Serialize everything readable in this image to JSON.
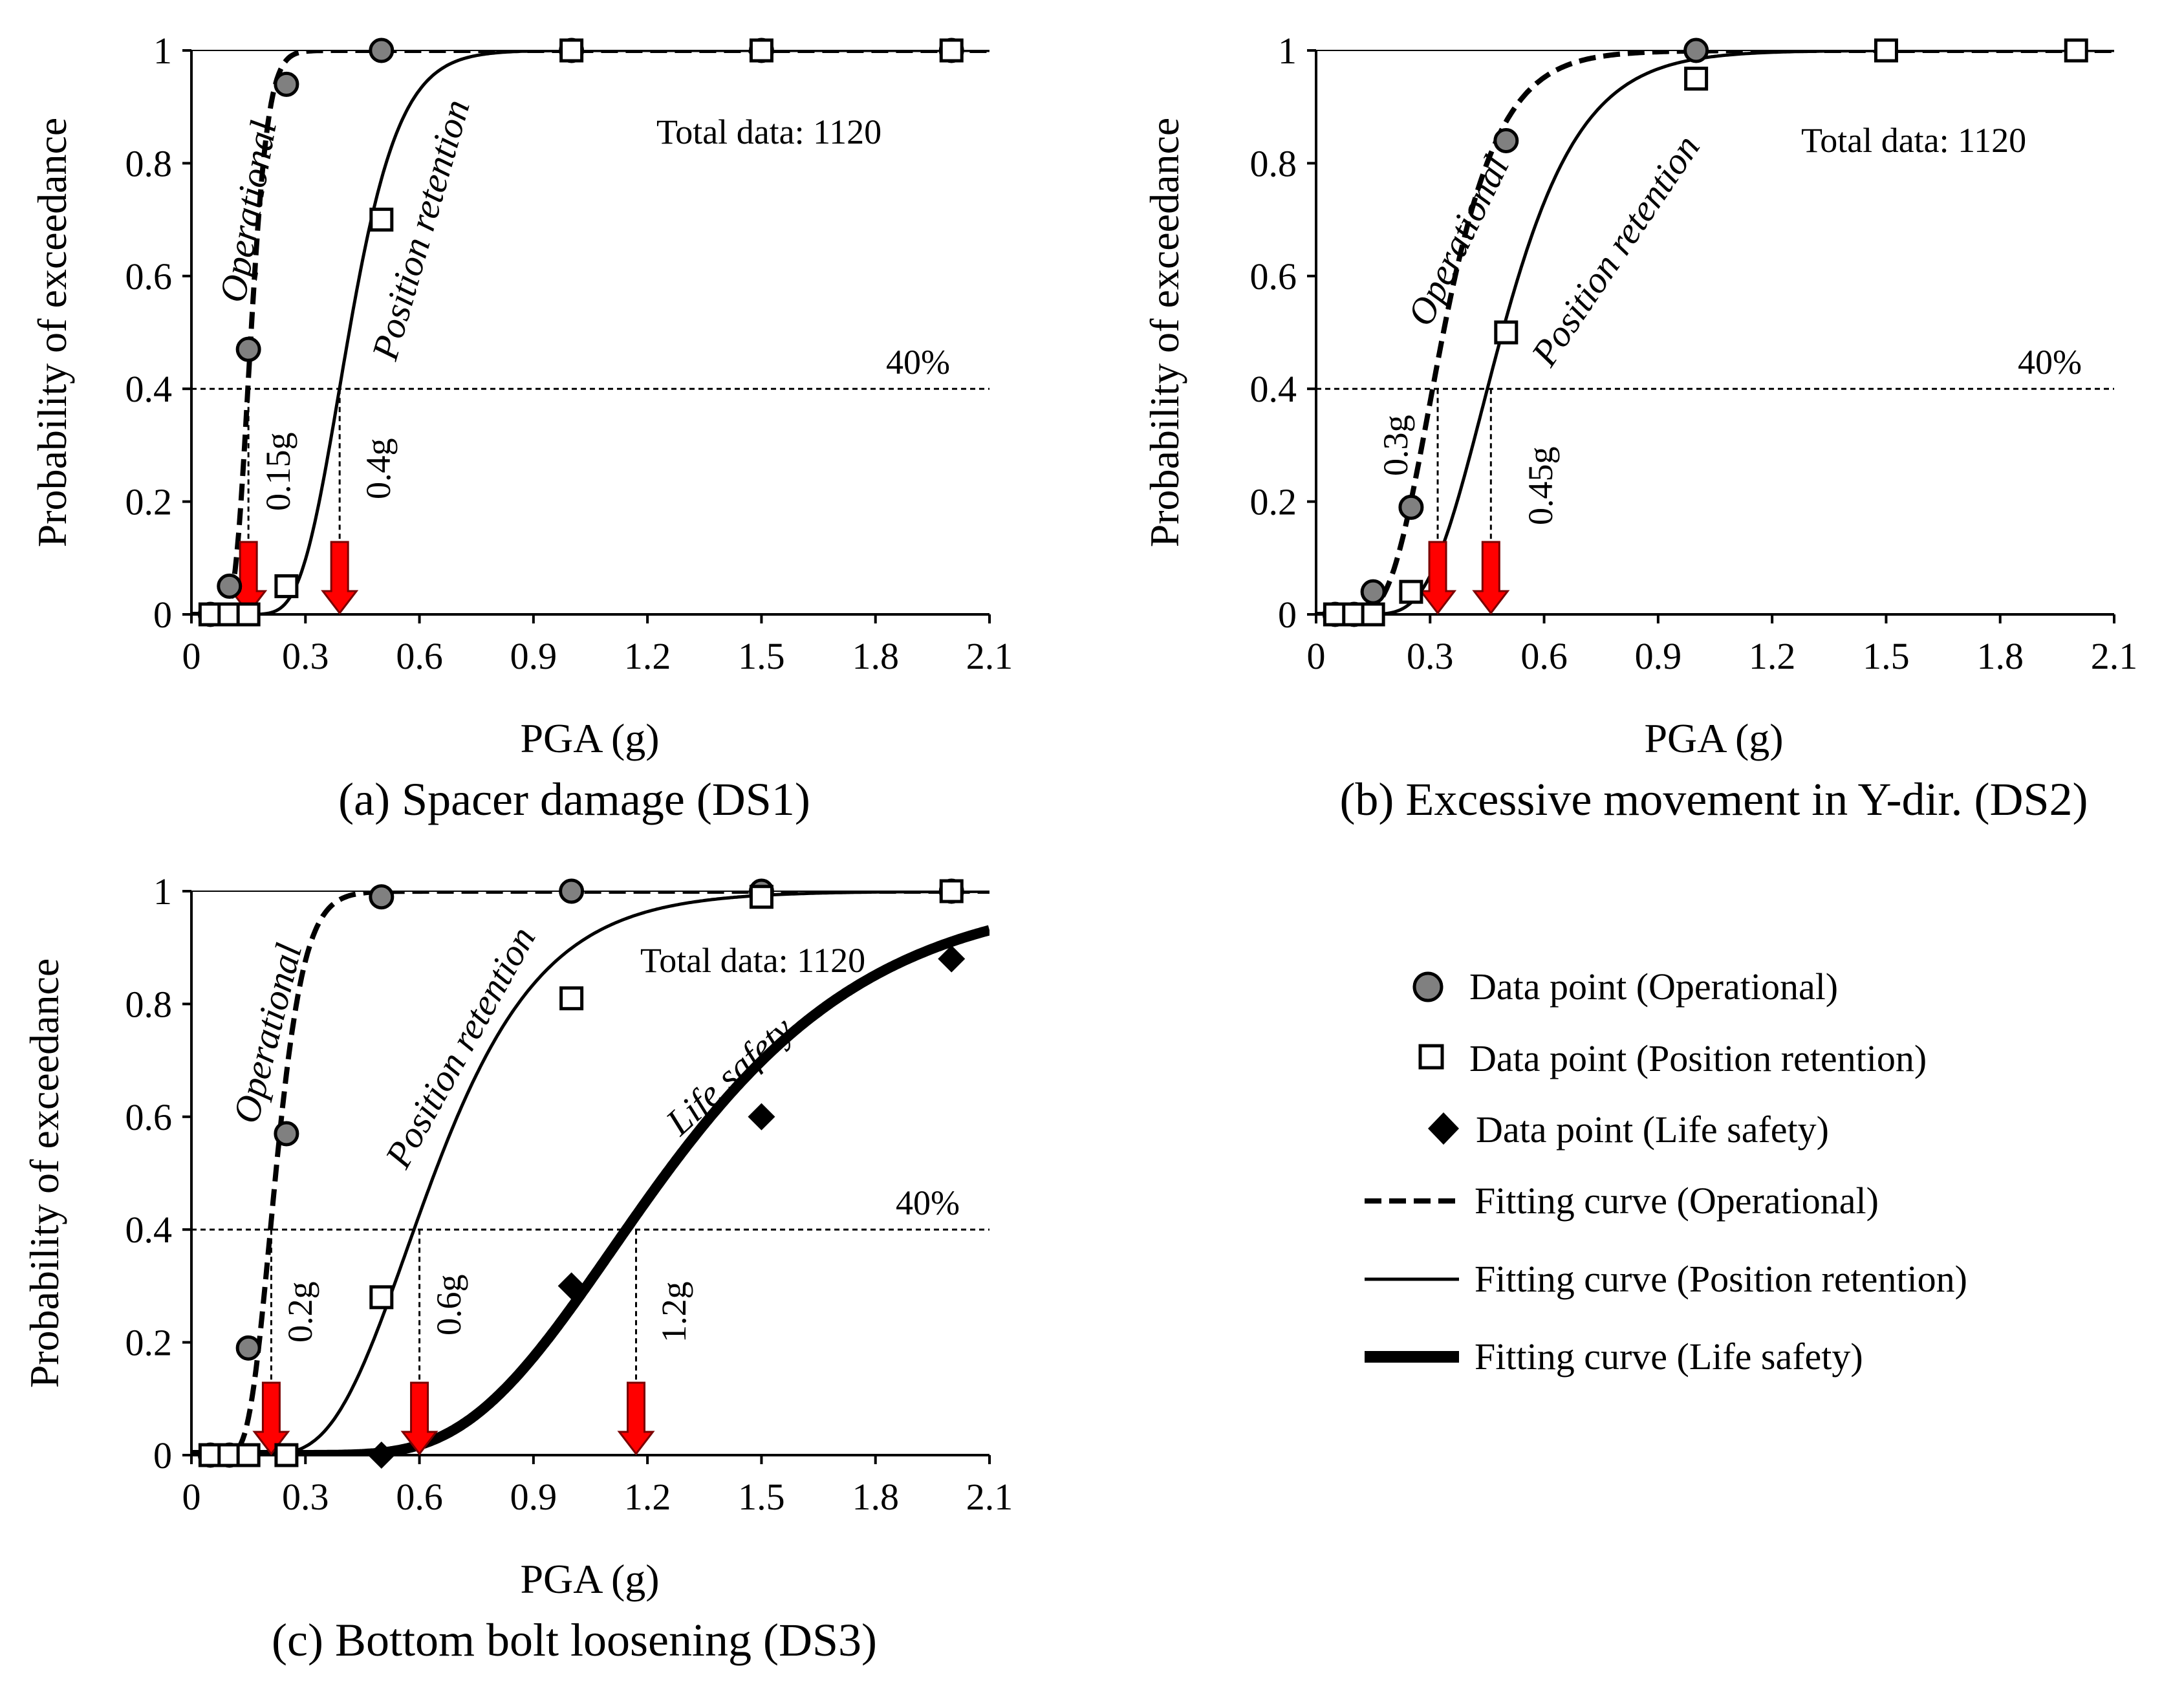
{
  "colors": {
    "arrow": "#ff0000",
    "op_marker": "#808080",
    "axis": "#000000"
  },
  "legend": {
    "items": [
      {
        "key": "op_point",
        "label": "Data point (Operational)"
      },
      {
        "key": "pr_point",
        "label": "Data point (Position retention)"
      },
      {
        "key": "ls_point",
        "label": "Data point (Life safety)"
      },
      {
        "key": "op_curve",
        "label": "Fitting curve (Operational)"
      },
      {
        "key": "pr_curve",
        "label": "Fitting curve (Position retention)"
      },
      {
        "key": "ls_curve",
        "label": "Fitting curve (Life safety)"
      }
    ]
  },
  "chart_data": [
    {
      "type": "scatter",
      "title": "(a) Spacer damage (DS1)",
      "xlabel": "PGA (g)",
      "ylabel": "Probability of exceedance",
      "xlim": [
        0,
        2.1
      ],
      "ylim": [
        0,
        1
      ],
      "xticks": [
        "0",
        "0.3",
        "0.6",
        "0.9",
        "1.2",
        "1.5",
        "1.8",
        "2.1"
      ],
      "yticks": [
        "0",
        "0.2",
        "0.4",
        "0.6",
        "0.8",
        "1"
      ],
      "total_label": "Total data: 1120",
      "threshold": {
        "y": 0.4,
        "label": "40%"
      },
      "series": [
        {
          "name": "Operational",
          "key": "op",
          "points": [
            [
              0.05,
              0
            ],
            [
              0.1,
              0.05
            ],
            [
              0.15,
              0.47
            ],
            [
              0.25,
              0.94
            ],
            [
              0.5,
              1
            ],
            [
              1.0,
              1
            ],
            [
              1.5,
              1
            ],
            [
              2.0,
              1
            ]
          ],
          "fit": {
            "median": 0.157,
            "beta": 0.22
          },
          "median_label": "0.15g",
          "arrow_x": 0.15
        },
        {
          "name": "Position retention",
          "key": "pr",
          "points": [
            [
              0.05,
              0
            ],
            [
              0.1,
              0
            ],
            [
              0.15,
              0
            ],
            [
              0.25,
              0.05
            ],
            [
              0.5,
              0.7
            ],
            [
              1.0,
              1
            ],
            [
              1.5,
              1
            ],
            [
              2.0,
              1
            ]
          ],
          "fit": {
            "median": 0.415,
            "beta": 0.25
          },
          "median_label": "0.4g",
          "arrow_x": 0.39
        }
      ]
    },
    {
      "type": "scatter",
      "title": "(b) Excessive movement in Y-dir. (DS2)",
      "xlabel": "PGA (g)",
      "ylabel": "Probability of exceedance",
      "xlim": [
        0,
        2.1
      ],
      "ylim": [
        0,
        1
      ],
      "xticks": [
        "0",
        "0.3",
        "0.6",
        "0.9",
        "1.2",
        "1.5",
        "1.8",
        "2.1"
      ],
      "yticks": [
        "0",
        "0.2",
        "0.4",
        "0.6",
        "0.8",
        "1"
      ],
      "total_label": "Total data: 1120",
      "threshold": {
        "y": 0.4,
        "label": "40%"
      },
      "series": [
        {
          "name": "Operational",
          "key": "op",
          "points": [
            [
              0.05,
              0
            ],
            [
              0.1,
              0
            ],
            [
              0.15,
              0.04
            ],
            [
              0.25,
              0.19
            ],
            [
              0.5,
              0.84
            ],
            [
              1.0,
              1
            ]
          ],
          "fit": {
            "median": 0.335,
            "beta": 0.35
          },
          "median_label": "0.3g",
          "arrow_x": 0.32
        },
        {
          "name": "Position retention",
          "key": "pr",
          "points": [
            [
              0.05,
              0
            ],
            [
              0.1,
              0
            ],
            [
              0.15,
              0
            ],
            [
              0.25,
              0.04
            ],
            [
              0.5,
              0.5
            ],
            [
              1.0,
              0.95
            ],
            [
              1.5,
              1
            ],
            [
              2.0,
              1
            ]
          ],
          "fit": {
            "median": 0.49,
            "beta": 0.33
          },
          "median_label": "0.45g",
          "arrow_x": 0.46
        }
      ]
    },
    {
      "type": "scatter",
      "title": "(c) Bottom bolt loosening (DS3)",
      "xlabel": "PGA (g)",
      "ylabel": "Probability of exceedance",
      "xlim": [
        0,
        2.1
      ],
      "ylim": [
        0,
        1
      ],
      "xticks": [
        "0",
        "0.3",
        "0.6",
        "0.9",
        "1.2",
        "1.5",
        "1.8",
        "2.1"
      ],
      "yticks": [
        "0",
        "0.2",
        "0.4",
        "0.6",
        "0.8",
        "1"
      ],
      "total_label": "Total data: 1120",
      "threshold": {
        "y": 0.4,
        "label": "40%"
      },
      "series": [
        {
          "name": "Operational",
          "key": "op",
          "points": [
            [
              0.05,
              0
            ],
            [
              0.1,
              0
            ],
            [
              0.15,
              0.19
            ],
            [
              0.25,
              0.57
            ],
            [
              0.5,
              0.99
            ],
            [
              1.0,
              1
            ],
            [
              1.5,
              1
            ],
            [
              2.0,
              1
            ]
          ],
          "fit": {
            "median": 0.222,
            "beta": 0.26
          },
          "median_label": "0.2g",
          "arrow_x": 0.21
        },
        {
          "name": "Position retention",
          "key": "pr",
          "points": [
            [
              0.05,
              0
            ],
            [
              0.1,
              0
            ],
            [
              0.15,
              0
            ],
            [
              0.25,
              0
            ],
            [
              0.5,
              0.28
            ],
            [
              1.0,
              0.81
            ],
            [
              1.5,
              0.99
            ],
            [
              2.0,
              1
            ]
          ],
          "fit": {
            "median": 0.64,
            "beta": 0.35
          },
          "median_label": "0.6g",
          "arrow_x": 0.6
        },
        {
          "name": "Life safety",
          "key": "ls",
          "points": [
            [
              0.5,
              0
            ],
            [
              1.0,
              0.3
            ],
            [
              1.5,
              0.6
            ],
            [
              2.0,
              0.88
            ]
          ],
          "fit": {
            "median": 1.25,
            "beta": 0.35
          },
          "median_label": "1.2g",
          "arrow_x": 1.17
        }
      ]
    }
  ]
}
